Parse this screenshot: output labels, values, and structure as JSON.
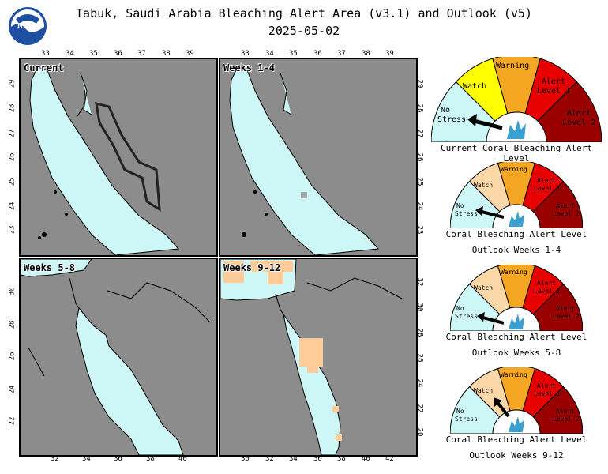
{
  "header": {
    "title": "Tabuk, Saudi Arabia Bleaching Alert Area (v3.1) and Outlook (v5)",
    "date": "2025-05-02",
    "logo_text": "NOAA"
  },
  "panels": [
    {
      "label": "Current",
      "x_ticks": [
        "33",
        "34",
        "35",
        "36",
        "37",
        "38",
        "39"
      ],
      "y_ticks_left": [
        "29",
        "28",
        "27",
        "26",
        "25",
        "24",
        "23"
      ]
    },
    {
      "label": "Weeks 1-4",
      "x_ticks": [
        "33",
        "34",
        "35",
        "36",
        "37",
        "38",
        "39"
      ],
      "y_ticks_right": [
        "29",
        "28",
        "27",
        "26",
        "25",
        "24",
        "23"
      ]
    },
    {
      "label": "Weeks 5-8",
      "x_ticks_bottom": [
        "32",
        "34",
        "36",
        "38",
        "40"
      ],
      "y_ticks_left": [
        "30",
        "28",
        "26",
        "24",
        "22"
      ]
    },
    {
      "label": "Weeks 9-12",
      "x_ticks_bottom": [
        "30",
        "32",
        "34",
        "36",
        "38",
        "40",
        "42"
      ],
      "y_ticks_right": [
        "32",
        "30",
        "28",
        "26",
        "24",
        "22",
        "20"
      ]
    }
  ],
  "gauges": [
    {
      "caption": "Current Coral Bleaching Alert Level",
      "caption2": "",
      "level": "No Stress"
    },
    {
      "caption": "Coral Bleaching Alert Level",
      "caption2": "Outlook Weeks 1-4",
      "level": "No Stress"
    },
    {
      "caption": "Coral Bleaching Alert Level",
      "caption2": "Outlook Weeks 5-8",
      "level": "No Stress"
    },
    {
      "caption": "Coral Bleaching Alert Level",
      "caption2": "Outlook Weeks 9-12",
      "level": "Watch"
    }
  ],
  "gauge_labels": {
    "no_stress_1": "No",
    "no_stress_2": "Stress",
    "watch": "Watch",
    "warning": "Warning",
    "alert1_1": "Alert",
    "alert1_2": "Level 1",
    "alert2_1": "Alert",
    "alert2_2": "Level 2"
  },
  "colors": {
    "land": "#8c8c8c",
    "sea": "#cdf6f6",
    "watch_outlook": "#ffcc99",
    "no_stress": "#cdf6f6",
    "watch_current": "#ffff00",
    "watch_outlook_gauge": "#fcd7a8",
    "warning": "#f5a623",
    "alert1": "#e60000",
    "alert2": "#990000",
    "coral_icon": "#3aa0d0"
  }
}
